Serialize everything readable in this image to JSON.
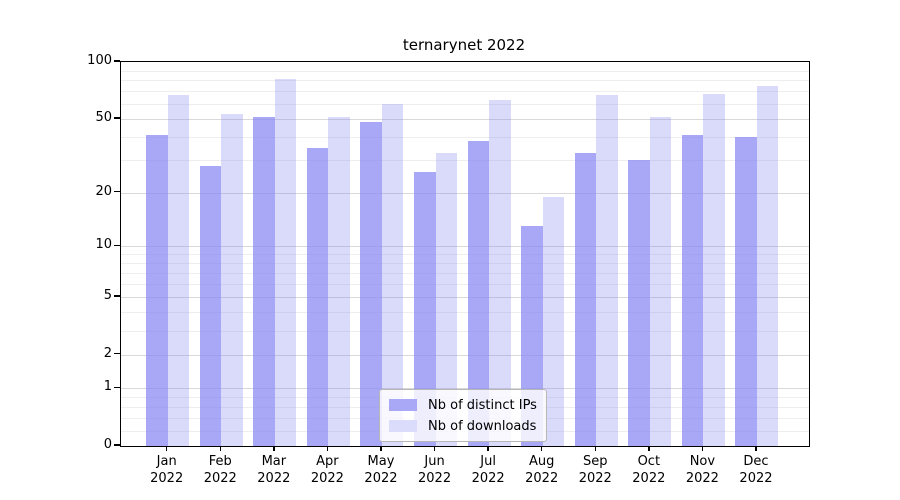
{
  "title": "ternarynet 2022",
  "chart_data": {
    "type": "bar",
    "title": "ternarynet 2022",
    "categories": [
      "Jan 2022",
      "Feb 2022",
      "Mar 2022",
      "Apr 2022",
      "May 2022",
      "Jun 2022",
      "Jul 2022",
      "Aug 2022",
      "Sep 2022",
      "Oct 2022",
      "Nov 2022",
      "Dec 2022"
    ],
    "series": [
      {
        "name": "Nb of distinct IPs",
        "color": "#8686f2",
        "alpha": 0.72,
        "values": [
          41,
          28,
          51,
          35,
          48,
          26,
          38,
          13,
          33,
          30,
          41,
          40
        ]
      },
      {
        "name": "Nb of downloads",
        "color": "#8686f2",
        "alpha": 0.3,
        "values": [
          67,
          53,
          81,
          51,
          60,
          33,
          63,
          19,
          67,
          51,
          68,
          75
        ]
      }
    ],
    "xlabel": "",
    "ylabel": "",
    "yscale": "log(1+y)",
    "yticks": [
      0,
      1,
      2,
      5,
      10,
      20,
      50,
      100
    ],
    "ylim": [
      0,
      100
    ],
    "grid": "both",
    "legend_position": "lower center"
  }
}
